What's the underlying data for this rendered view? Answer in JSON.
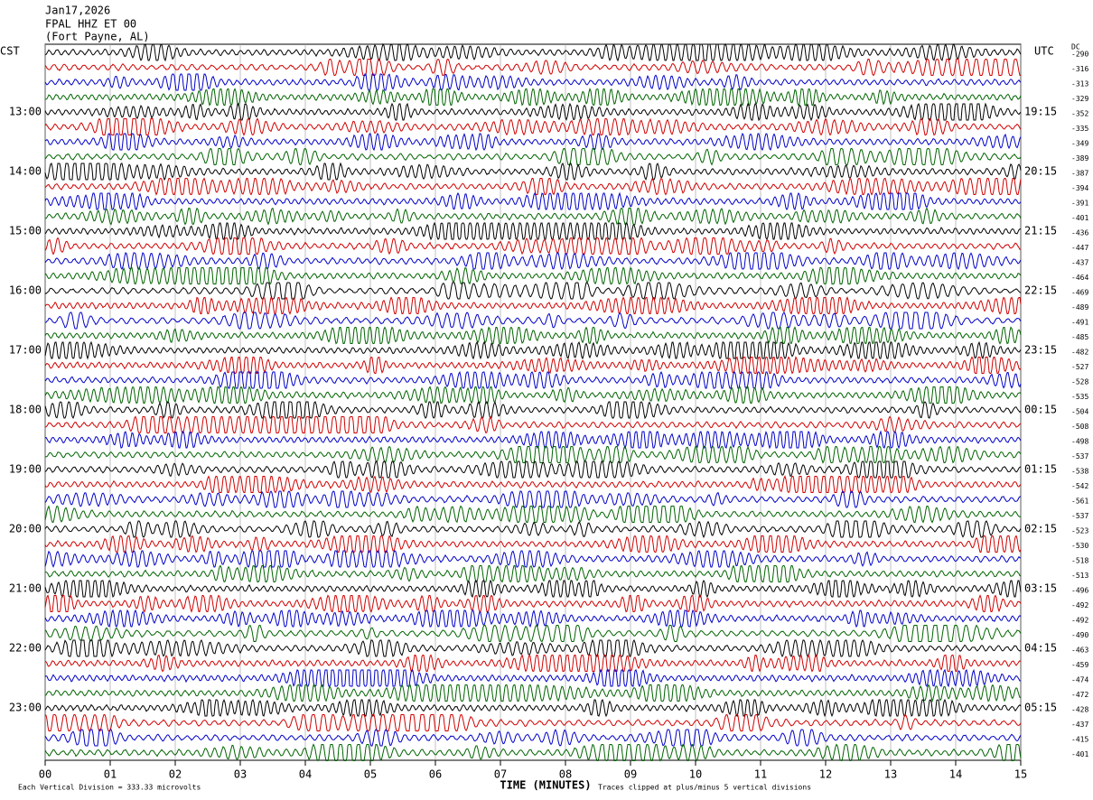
{
  "header": [
    "Jan17,2026",
    "FPAL HHZ ET 00",
    "(Fort Payne, AL)"
  ],
  "left_header": "CST",
  "right_header": "UTC",
  "dc_header": "DC",
  "hour_labels": [
    {
      "cst": "13:00",
      "utc": "19:15"
    },
    {
      "cst": "14:00",
      "utc": "20:15"
    },
    {
      "cst": "15:00",
      "utc": "21:15"
    },
    {
      "cst": "16:00",
      "utc": "22:15"
    },
    {
      "cst": "17:00",
      "utc": "23:15"
    },
    {
      "cst": "18:00",
      "utc": "00:15"
    },
    {
      "cst": "19:00",
      "utc": "01:15"
    },
    {
      "cst": "20:00",
      "utc": "02:15"
    },
    {
      "cst": "21:00",
      "utc": "03:15"
    },
    {
      "cst": "22:00",
      "utc": "04:15"
    },
    {
      "cst": "23:00",
      "utc": "05:15"
    }
  ],
  "dc_values": [
    -290,
    -316,
    -313,
    -329,
    -352,
    -335,
    -349,
    -389,
    -387,
    -394,
    -391,
    -401,
    -436,
    -447,
    -437,
    -464,
    -469,
    -489,
    -491,
    -485,
    -482,
    -527,
    -528,
    -535,
    -504,
    -508,
    -498,
    -537,
    -538,
    -542,
    -561,
    -537,
    -523,
    -530,
    -518,
    -513,
    -496,
    -492,
    -492,
    -490,
    -463,
    -459,
    -474,
    -472,
    -428,
    -437,
    -415,
    -401
  ],
  "trace_colors": [
    "#000000",
    "#d00000",
    "#0000c8",
    "#006400"
  ],
  "xlim": [
    0,
    15
  ],
  "xticks": [
    {
      "value": 0,
      "label": "00"
    },
    {
      "value": 1,
      "label": "01"
    },
    {
      "value": 2,
      "label": "02"
    },
    {
      "value": 3,
      "label": "03"
    },
    {
      "value": 4,
      "label": "04"
    },
    {
      "value": 5,
      "label": "05"
    },
    {
      "value": 6,
      "label": "06"
    },
    {
      "value": 7,
      "label": "07"
    },
    {
      "value": 8,
      "label": "08"
    },
    {
      "value": 9,
      "label": "09"
    },
    {
      "value": 10,
      "label": "10"
    },
    {
      "value": 11,
      "label": "11"
    },
    {
      "value": 12,
      "label": "12"
    },
    {
      "value": 13,
      "label": "13"
    },
    {
      "value": 14,
      "label": "14"
    },
    {
      "value": 15,
      "label": "15"
    }
  ],
  "xlabel": "TIME (MINUTES)",
  "footer_left": "Each Vertical Division =  333.33 microvolts",
  "footer_right": "Traces clipped at plus/minus 5 vertical divisions"
}
